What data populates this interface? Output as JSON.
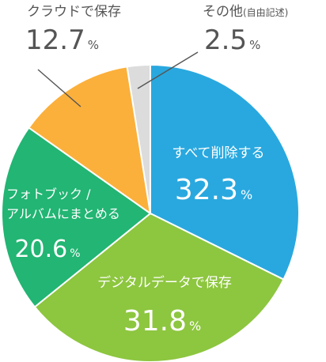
{
  "chart_data": {
    "type": "pie",
    "title": "",
    "start": "top",
    "direction": "clockwise",
    "slices": [
      {
        "label": "すべて削除する",
        "value": 32.3,
        "value_text": "32.3",
        "unit": "%",
        "color": "#29a8df",
        "label_color": "#ffffff",
        "label_position": "inside"
      },
      {
        "label": "デジタルデータで保存",
        "value": 31.8,
        "value_text": "31.8",
        "unit": "%",
        "color": "#8dc63f",
        "label_color": "#ffffff",
        "label_position": "inside"
      },
      {
        "label_lines": [
          "フォトブック /",
          "アルバムにまとめる"
        ],
        "value": 20.6,
        "value_text": "20.6",
        "unit": "%",
        "color": "#22b573",
        "label_color": "#ffffff",
        "label_position": "inside"
      },
      {
        "label": "クラウドで保存",
        "value": 12.7,
        "value_text": "12.7",
        "unit": "%",
        "color": "#fbb03b",
        "label_color": "#555555",
        "label_position": "outside"
      },
      {
        "label": "その他",
        "label_note": "(自由記述)",
        "value": 2.5,
        "value_text": "2.5",
        "unit": "%",
        "color": "#dcdcdc",
        "label_color": "#555555",
        "label_position": "outside"
      }
    ]
  }
}
